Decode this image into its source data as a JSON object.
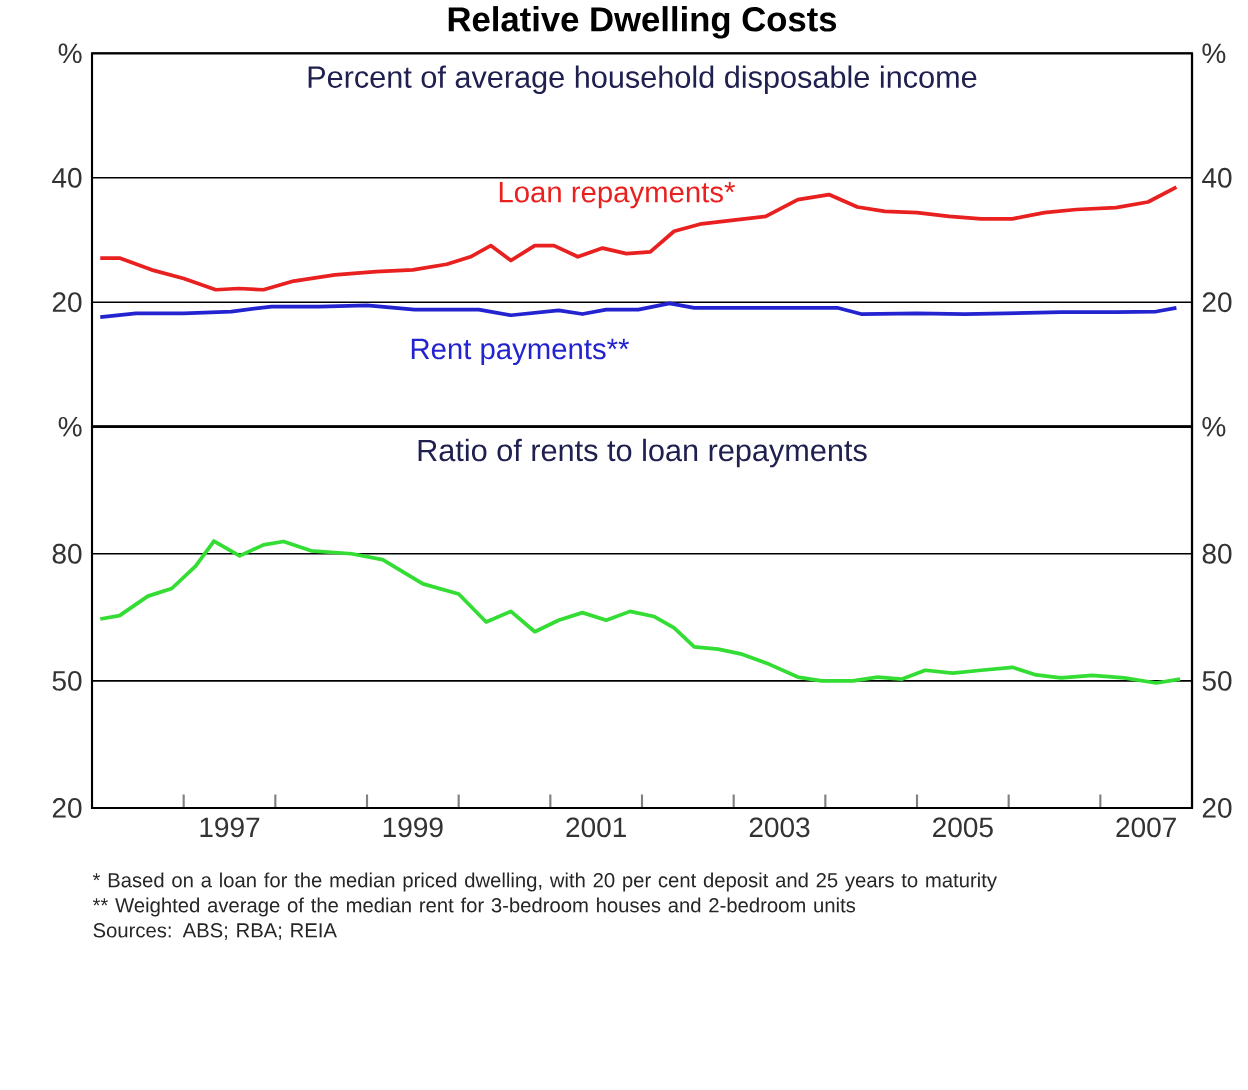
{
  "chart_data": [
    {
      "type": "line",
      "title": "Relative Dwelling Costs",
      "subtitle": "Percent of average household disposable income",
      "xlim": [
        1996,
        2008
      ],
      "ylim": [
        0,
        60
      ],
      "yticks": [
        {
          "value": 0,
          "label": null
        },
        20,
        40,
        {
          "value": 60,
          "label": "%"
        }
      ],
      "y2lim": [
        0,
        60
      ],
      "y2ticks": [
        {
          "value": 0,
          "label": null
        },
        20,
        40,
        {
          "value": 60,
          "label": "%"
        }
      ],
      "grid": "y",
      "tick_labels": "y",
      "series": [
        {
          "name": "Loan repayments*",
          "color": "#e8201f",
          "x": [
            1996.09,
            1996.3,
            1996.65,
            1997.0,
            1997.35,
            1997.6,
            1997.87,
            1998.2,
            1998.65,
            1999.1,
            1999.5,
            1999.87,
            2000.13,
            2000.35,
            2000.57,
            2000.83,
            2001.04,
            2001.3,
            2001.57,
            2001.83,
            2002.09,
            2002.35,
            2002.65,
            2003.0,
            2003.35,
            2003.7,
            2004.04,
            2004.35,
            2004.65,
            2005.0,
            2005.35,
            2005.7,
            2006.04,
            2006.39,
            2006.74,
            2007.17,
            2007.52,
            2007.83
          ],
          "values": [
            27.1,
            27.1,
            25.2,
            23.8,
            22.0,
            22.2,
            22.0,
            23.4,
            24.4,
            24.9,
            25.2,
            26.1,
            27.3,
            29.1,
            26.7,
            29.1,
            29.1,
            27.3,
            28.7,
            27.8,
            28.1,
            31.4,
            32.6,
            33.2,
            33.8,
            36.5,
            37.3,
            35.3,
            34.6,
            34.4,
            33.8,
            33.4,
            33.4,
            34.4,
            34.9,
            35.2,
            36.1,
            38.5
          ]
        },
        {
          "name": "Rent payments**",
          "color": "#2323d0",
          "x": [
            1996.09,
            1996.48,
            1997.0,
            1997.52,
            1997.96,
            1998.48,
            1999.0,
            1999.52,
            2000.22,
            2000.57,
            2001.09,
            2001.35,
            2001.61,
            2001.96,
            2002.3,
            2002.57,
            2003.26,
            2004.13,
            2004.39,
            2005.0,
            2005.52,
            2005.96,
            2006.57,
            2007.17,
            2007.61,
            2007.83
          ],
          "values": [
            17.6,
            18.2,
            18.2,
            18.5,
            19.3,
            19.3,
            19.5,
            18.8,
            18.8,
            17.9,
            18.7,
            18.1,
            18.8,
            18.8,
            19.8,
            19.1,
            19.1,
            19.1,
            18.1,
            18.2,
            18.1,
            18.2,
            18.4,
            18.4,
            18.5,
            19.1
          ]
        }
      ]
    },
    {
      "type": "line",
      "title": "Ratio of rents to loan repayments",
      "xlim": [
        1996,
        2008
      ],
      "xticks": [
        {
          "value": 1997,
          "label": null
        },
        {
          "value": 1997.5,
          "label": "1997"
        },
        {
          "value": 1998,
          "label": null
        },
        {
          "value": 1999,
          "label": null
        },
        {
          "value": 1999.5,
          "label": "1999"
        },
        {
          "value": 2000,
          "label": null
        },
        {
          "value": 2001,
          "label": null
        },
        {
          "value": 2001.5,
          "label": "2001"
        },
        {
          "value": 2002,
          "label": null
        },
        {
          "value": 2003,
          "label": null
        },
        {
          "value": 2003.5,
          "label": "2003"
        },
        {
          "value": 2004,
          "label": null
        },
        {
          "value": 2005,
          "label": null
        },
        {
          "value": 2005.5,
          "label": "2005"
        },
        {
          "value": 2006,
          "label": null
        },
        {
          "value": 2007,
          "label": null
        },
        {
          "value": 2007.5,
          "label": "2007"
        }
      ],
      "ylim": [
        20,
        110
      ],
      "yticks": [
        20,
        50,
        80,
        {
          "value": 110,
          "label": "%"
        }
      ],
      "y2lim": [
        20,
        110
      ],
      "y2ticks": [
        20,
        50,
        80,
        {
          "value": 110,
          "label": "%"
        }
      ],
      "grid": "y",
      "series": [
        {
          "color": "#33dd33",
          "x": [
            1996.09,
            1996.3,
            1996.61,
            1996.87,
            1997.13,
            1997.33,
            1997.61,
            1997.87,
            1998.09,
            1998.39,
            1998.83,
            1999.17,
            1999.61,
            2000.0,
            2000.3,
            2000.57,
            2000.83,
            2001.09,
            2001.35,
            2001.61,
            2001.87,
            2002.13,
            2002.35,
            2002.57,
            2002.83,
            2003.09,
            2003.39,
            2003.7,
            2003.96,
            2004.3,
            2004.57,
            2004.83,
            2005.09,
            2005.39,
            2005.7,
            2006.04,
            2006.3,
            2006.57,
            2006.91,
            2007.26,
            2007.61,
            2007.87
          ],
          "values": [
            64.6,
            65.4,
            70.0,
            71.8,
            77.1,
            83.0,
            79.5,
            82.1,
            82.9,
            80.7,
            80.0,
            78.6,
            72.9,
            70.5,
            63.9,
            66.4,
            61.6,
            64.3,
            66.1,
            64.3,
            66.4,
            65.2,
            62.5,
            58.0,
            57.5,
            56.3,
            53.9,
            50.9,
            50.0,
            50.0,
            50.9,
            50.4,
            52.5,
            51.8,
            52.5,
            53.2,
            51.4,
            50.7,
            51.3,
            50.7,
            49.5,
            50.4
          ]
        }
      ],
      "annotations": [
        "* Based on a loan for the median priced dwelling, with 20 per cent deposit and 25 years to maturity",
        "** Weighted average of the median rent for 3-bedroom houses and 2-bedroom units",
        "Sources: ABS; RBA; REIA"
      ]
    }
  ]
}
